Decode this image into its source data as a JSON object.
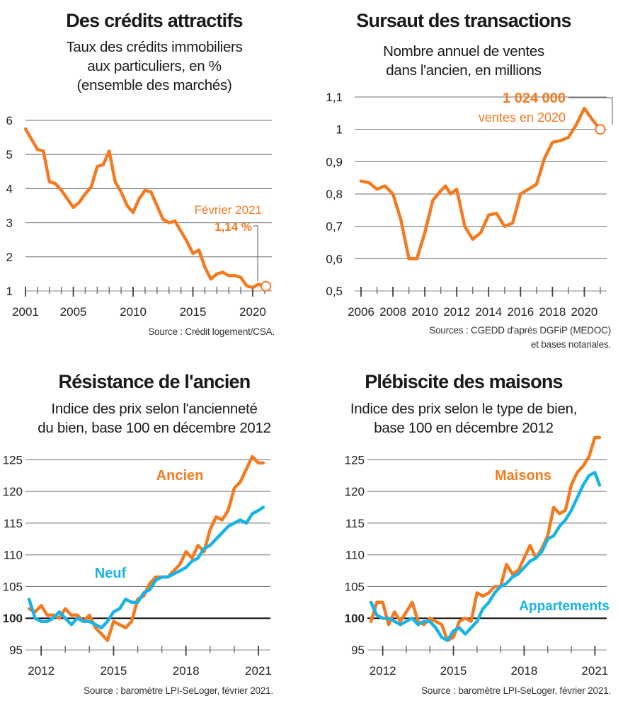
{
  "colors": {
    "orange": "#f47a20",
    "blue": "#19b3e6",
    "grid": "#6e6e6e",
    "text": "#1a1a1a"
  },
  "chart_data": [
    {
      "id": "credits",
      "type": "line",
      "title": "Des crédits attractifs",
      "subtitle": "Taux des crédits immobiliers\naux particuliers, en %\n(ensemble des marchés)",
      "source": "Source : Crédit logement/CSA.",
      "ylim": [
        1,
        6
      ],
      "yticks": [
        "1",
        "2",
        "3",
        "4",
        "5",
        "6"
      ],
      "xlim": [
        2001,
        2021.6
      ],
      "xticks": [
        "2001",
        "2005",
        "2010",
        "2015",
        "2020"
      ],
      "grid": true,
      "series": [
        {
          "color": "#f47a20",
          "x": [
            2001,
            2001.5,
            2002,
            2002.5,
            2003,
            2003.5,
            2004,
            2004.6,
            2005,
            2005.5,
            2006,
            2006.5,
            2007,
            2007.5,
            2008,
            2008.5,
            2009,
            2009.5,
            2010,
            2010.5,
            2011,
            2011.5,
            2012,
            2012.5,
            2013,
            2013.5,
            2014,
            2014.5,
            2015,
            2015.5,
            2016,
            2016.5,
            2017,
            2017.5,
            2018,
            2018.5,
            2019,
            2019.5,
            2020,
            2020.5,
            2021.1
          ],
          "y": [
            5.75,
            5.45,
            5.15,
            5.1,
            4.2,
            4.15,
            3.95,
            3.65,
            3.45,
            3.6,
            3.85,
            4.05,
            4.65,
            4.7,
            5.1,
            4.2,
            3.9,
            3.5,
            3.3,
            3.7,
            3.95,
            3.9,
            3.5,
            3.1,
            3.0,
            3.05,
            2.75,
            2.45,
            2.1,
            2.2,
            1.7,
            1.35,
            1.5,
            1.55,
            1.45,
            1.45,
            1.4,
            1.15,
            1.1,
            1.2,
            1.14
          ]
        }
      ],
      "annotations": [
        {
          "text": "Février 2021",
          "bold": false
        },
        {
          "text": "1,14 %",
          "bold": true
        }
      ]
    },
    {
      "id": "transactions",
      "type": "line",
      "title": "Sursaut des transactions",
      "subtitle": "Nombre annuel de ventes\ndans l'ancien, en millions",
      "source": "Sources : CGEDD d'après DGFiP (MEDOC)\net bases notariales.",
      "ylim": [
        0.5,
        1.1
      ],
      "yticks": [
        "0,5",
        "0,6",
        "0,7",
        "0,8",
        "0,9",
        "1",
        "1,1"
      ],
      "xlim": [
        2005.6,
        2021.4
      ],
      "xticks": [
        "2006",
        "2008",
        "2010",
        "2012",
        "2014",
        "2016",
        "2018",
        "2020"
      ],
      "grid": true,
      "series": [
        {
          "color": "#f47a20",
          "x": [
            2006,
            2006.5,
            2007,
            2007.5,
            2008,
            2008.5,
            2009,
            2009.5,
            2010,
            2010.5,
            2011,
            2011.3,
            2011.6,
            2012,
            2012.5,
            2013,
            2013.5,
            2014,
            2014.5,
            2015,
            2015.5,
            2016,
            2016.5,
            2017,
            2017.5,
            2018,
            2018.5,
            2019,
            2019.5,
            2020,
            2020.5,
            2021
          ],
          "y": [
            0.84,
            0.835,
            0.815,
            0.825,
            0.8,
            0.72,
            0.6,
            0.6,
            0.68,
            0.78,
            0.81,
            0.825,
            0.8,
            0.815,
            0.7,
            0.66,
            0.68,
            0.735,
            0.74,
            0.7,
            0.71,
            0.8,
            0.815,
            0.83,
            0.91,
            0.96,
            0.965,
            0.975,
            1.015,
            1.065,
            1.03,
            1.0
          ]
        }
      ],
      "annotations": [
        {
          "text": "1 024 000",
          "bold": true
        },
        {
          "text": "ventes en 2020",
          "bold": false
        }
      ]
    },
    {
      "id": "ancien",
      "type": "line",
      "title": "Résistance de l'ancien",
      "subtitle": "Indice des prix selon l'ancienneté\ndu bien, base 100 en décembre 2012",
      "source": "Source : baromètre LPI-SeLoger, février 2021.",
      "ylim": [
        95,
        127.5
      ],
      "yticks": [
        "95",
        "100",
        "105",
        "110",
        "115",
        "120",
        "125"
      ],
      "xlim": [
        2011.35,
        2021.5
      ],
      "xticks": [
        "2012",
        "2015",
        "2018",
        "2021"
      ],
      "grid": true,
      "series": [
        {
          "name": "Ancien",
          "color": "#f47a20",
          "x": [
            2011.5,
            2011.75,
            2012,
            2012.25,
            2012.5,
            2012.75,
            2013,
            2013.25,
            2013.5,
            2013.75,
            2014,
            2014.25,
            2014.5,
            2014.75,
            2015,
            2015.25,
            2015.5,
            2015.75,
            2016,
            2016.25,
            2016.5,
            2016.75,
            2017,
            2017.25,
            2017.5,
            2017.75,
            2018,
            2018.25,
            2018.5,
            2018.75,
            2019,
            2019.25,
            2019.5,
            2019.75,
            2020,
            2020.25,
            2020.5,
            2020.75,
            2021,
            2021.2
          ],
          "y": [
            101.5,
            101,
            102,
            100.5,
            100.5,
            100,
            101.5,
            100.5,
            100.5,
            99.5,
            100.5,
            98.5,
            97.5,
            96.5,
            99.5,
            99,
            98.5,
            99.5,
            103,
            103.5,
            105.5,
            106.5,
            106.5,
            106.5,
            107.5,
            108.5,
            110.5,
            109.5,
            111.5,
            110.5,
            114,
            116,
            115.5,
            117,
            120.5,
            121.5,
            123.5,
            125.5,
            124.5,
            124.5
          ]
        },
        {
          "name": "Neuf",
          "color": "#19b3e6",
          "x": [
            2011.5,
            2011.75,
            2012,
            2012.25,
            2012.5,
            2012.75,
            2013,
            2013.25,
            2013.5,
            2013.75,
            2014,
            2014.25,
            2014.5,
            2014.75,
            2015,
            2015.25,
            2015.5,
            2015.75,
            2016,
            2016.25,
            2016.5,
            2016.75,
            2017,
            2017.25,
            2017.5,
            2017.75,
            2018,
            2018.25,
            2018.5,
            2018.75,
            2019,
            2019.25,
            2019.5,
            2019.75,
            2020,
            2020.25,
            2020.5,
            2020.75,
            2021,
            2021.2
          ],
          "y": [
            103,
            100,
            99.5,
            99.5,
            100,
            101,
            100,
            99,
            100,
            99.5,
            99.5,
            99,
            98.5,
            99.5,
            101,
            101.5,
            103,
            102.5,
            102.5,
            104,
            104.5,
            106,
            106.5,
            106.5,
            107,
            107.5,
            108,
            109,
            109.5,
            111,
            111.5,
            112.5,
            113.5,
            114.5,
            115,
            115.5,
            115,
            116.5,
            117,
            117.5
          ]
        }
      ]
    },
    {
      "id": "maisons",
      "type": "line",
      "title": "Plébiscite des maisons",
      "subtitle": "Indice des prix selon le type de bien,\nbase 100 en décembre 2012",
      "source": "Source : baromètre LPI-SeLoger, février 2021.",
      "ylim": [
        95,
        127.5
      ],
      "yticks": [
        "95",
        "100",
        "105",
        "110",
        "115",
        "120",
        "125"
      ],
      "xlim": [
        2011.35,
        2021.5
      ],
      "xticks": [
        "2012",
        "2015",
        "2018",
        "2021"
      ],
      "grid": true,
      "series": [
        {
          "name": "Maisons",
          "color": "#f47a20",
          "x": [
            2011.5,
            2011.75,
            2012,
            2012.25,
            2012.5,
            2012.75,
            2013,
            2013.25,
            2013.5,
            2013.75,
            2014,
            2014.25,
            2014.5,
            2014.75,
            2015,
            2015.25,
            2015.5,
            2015.75,
            2016,
            2016.25,
            2016.5,
            2016.75,
            2017,
            2017.25,
            2017.5,
            2017.75,
            2018,
            2018.25,
            2018.5,
            2018.75,
            2019,
            2019.25,
            2019.5,
            2019.75,
            2020,
            2020.25,
            2020.5,
            2020.75,
            2021,
            2021.2
          ],
          "y": [
            99.5,
            102.5,
            102.5,
            99,
            101,
            99.5,
            101,
            102.5,
            99.5,
            99,
            100,
            99.5,
            99,
            96.5,
            97,
            99.5,
            100,
            99.5,
            104,
            103.5,
            104,
            105,
            105,
            108.5,
            107,
            107.5,
            109.5,
            111.5,
            109.5,
            111,
            113,
            117.5,
            116.5,
            117,
            121,
            123,
            124,
            125.5,
            128.5,
            128.5
          ]
        },
        {
          "name": "Appartements",
          "color": "#19b3e6",
          "x": [
            2011.5,
            2011.75,
            2012,
            2012.25,
            2012.5,
            2012.75,
            2013,
            2013.25,
            2013.5,
            2013.75,
            2014,
            2014.25,
            2014.5,
            2014.75,
            2015,
            2015.25,
            2015.5,
            2015.75,
            2016,
            2016.25,
            2016.5,
            2016.75,
            2017,
            2017.25,
            2017.5,
            2017.75,
            2018,
            2018.25,
            2018.5,
            2018.75,
            2019,
            2019.25,
            2019.5,
            2019.75,
            2020,
            2020.25,
            2020.5,
            2020.75,
            2021,
            2021.2
          ],
          "y": [
            102.5,
            100.5,
            100,
            100,
            99.5,
            99,
            99.5,
            100,
            99,
            99.5,
            99.5,
            98.5,
            97,
            96.5,
            98,
            98.5,
            97.5,
            98.5,
            99.5,
            101.5,
            102.5,
            104,
            105,
            105.5,
            106.5,
            107,
            108,
            109,
            109.5,
            110.5,
            112.5,
            113,
            114.5,
            115.5,
            117,
            119,
            121,
            122.5,
            123,
            121
          ]
        }
      ]
    }
  ]
}
